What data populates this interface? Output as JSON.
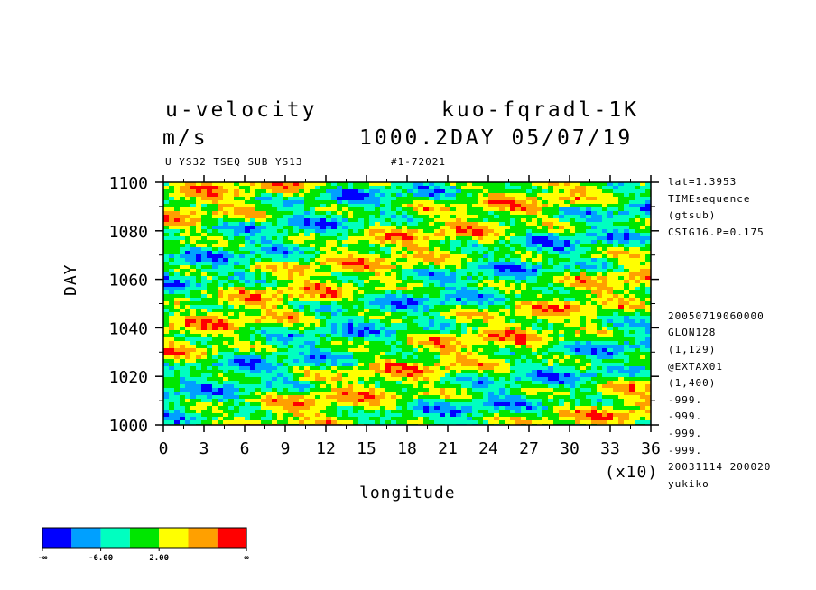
{
  "header": {
    "variable": "u-velocity",
    "experiment": "kuo-fqradl-1K",
    "units": "m/s",
    "stamp": "1000.2DAY 05/07/19",
    "subtitle": "U YS32 TSEQ SUB YS13",
    "run_id": "#1-72021"
  },
  "info": [
    "lat=1.3953",
    "TIMEsequence",
    "(gtsub)",
    "CSIG16.P=0.175",
    "",
    "",
    "",
    "",
    "20050719060000",
    "GLON128",
    "(1,129)",
    "@EXTAX01",
    "(1,400)",
    "-999.",
    "-999.",
    "-999.",
    "-999.",
    "20031114 200020",
    "yukiko"
  ],
  "chart_data": {
    "type": "heatmap",
    "xlabel": "longitude",
    "ylabel": "DAY",
    "x_multiplier": "(x10)",
    "xlim": [
      0,
      36
    ],
    "ylim": [
      1000,
      1100
    ],
    "xticks": [
      "0",
      "3",
      "6",
      "9",
      "12",
      "15",
      "18",
      "21",
      "24",
      "27",
      "30",
      "33",
      "36"
    ],
    "yticks": [
      "1000",
      "1020",
      "1040",
      "1060",
      "1080",
      "1100"
    ],
    "colorbar": {
      "colors": [
        "#0000ff",
        "#00a0ff",
        "#00ffc0",
        "#00e600",
        "#ffff00",
        "#ffa000",
        "#ff0000"
      ],
      "labels": [
        "-∞",
        "-6.00",
        "2.00",
        "∞"
      ]
    }
  }
}
